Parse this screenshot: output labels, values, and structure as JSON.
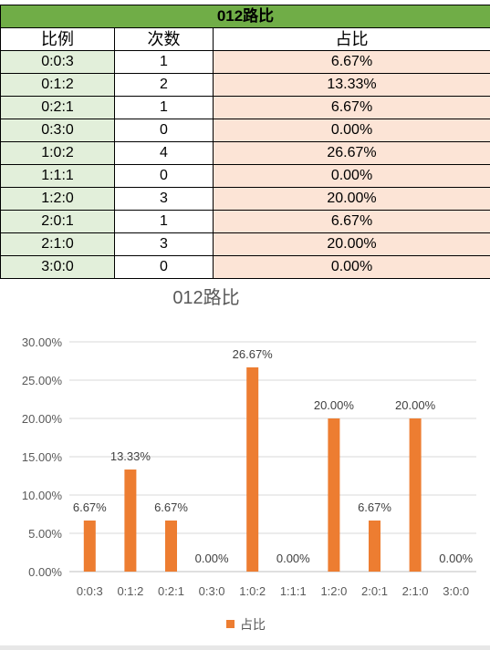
{
  "table": {
    "title": "012路比",
    "headers": [
      "比例",
      "次数",
      "占比"
    ],
    "rows": [
      {
        "ratio": "0:0:3",
        "count": "1",
        "pct": "6.67%"
      },
      {
        "ratio": "0:1:2",
        "count": "2",
        "pct": "13.33%"
      },
      {
        "ratio": "0:2:1",
        "count": "1",
        "pct": "6.67%"
      },
      {
        "ratio": "0:3:0",
        "count": "0",
        "pct": "0.00%"
      },
      {
        "ratio": "1:0:2",
        "count": "4",
        "pct": "26.67%"
      },
      {
        "ratio": "1:1:1",
        "count": "0",
        "pct": "0.00%"
      },
      {
        "ratio": "1:2:0",
        "count": "3",
        "pct": "20.00%"
      },
      {
        "ratio": "2:0:1",
        "count": "1",
        "pct": "6.67%"
      },
      {
        "ratio": "2:1:0",
        "count": "3",
        "pct": "20.00%"
      },
      {
        "ratio": "3:0:0",
        "count": "0",
        "pct": "0.00%"
      }
    ]
  },
  "chart_data": {
    "type": "bar",
    "title": "012路比",
    "categories": [
      "0:0:3",
      "0:1:2",
      "0:2:1",
      "0:3:0",
      "1:0:2",
      "1:1:1",
      "1:2:0",
      "2:0:1",
      "2:1:0",
      "3:0:0"
    ],
    "series": [
      {
        "name": "占比",
        "values": [
          6.67,
          13.33,
          6.67,
          0.0,
          26.67,
          0.0,
          20.0,
          6.67,
          20.0,
          0.0
        ]
      }
    ],
    "data_labels": [
      "6.67%",
      "13.33%",
      "6.67%",
      "0.00%",
      "26.67%",
      "0.00%",
      "20.00%",
      "6.67%",
      "20.00%",
      "0.00%"
    ],
    "yticks": [
      "0.00%",
      "5.00%",
      "10.00%",
      "15.00%",
      "20.00%",
      "25.00%",
      "30.00%"
    ],
    "ylim": [
      0,
      30
    ],
    "xlabel": "",
    "ylabel": "",
    "grid": true,
    "legend": "bottom",
    "bar_color": "#ed7d31"
  }
}
